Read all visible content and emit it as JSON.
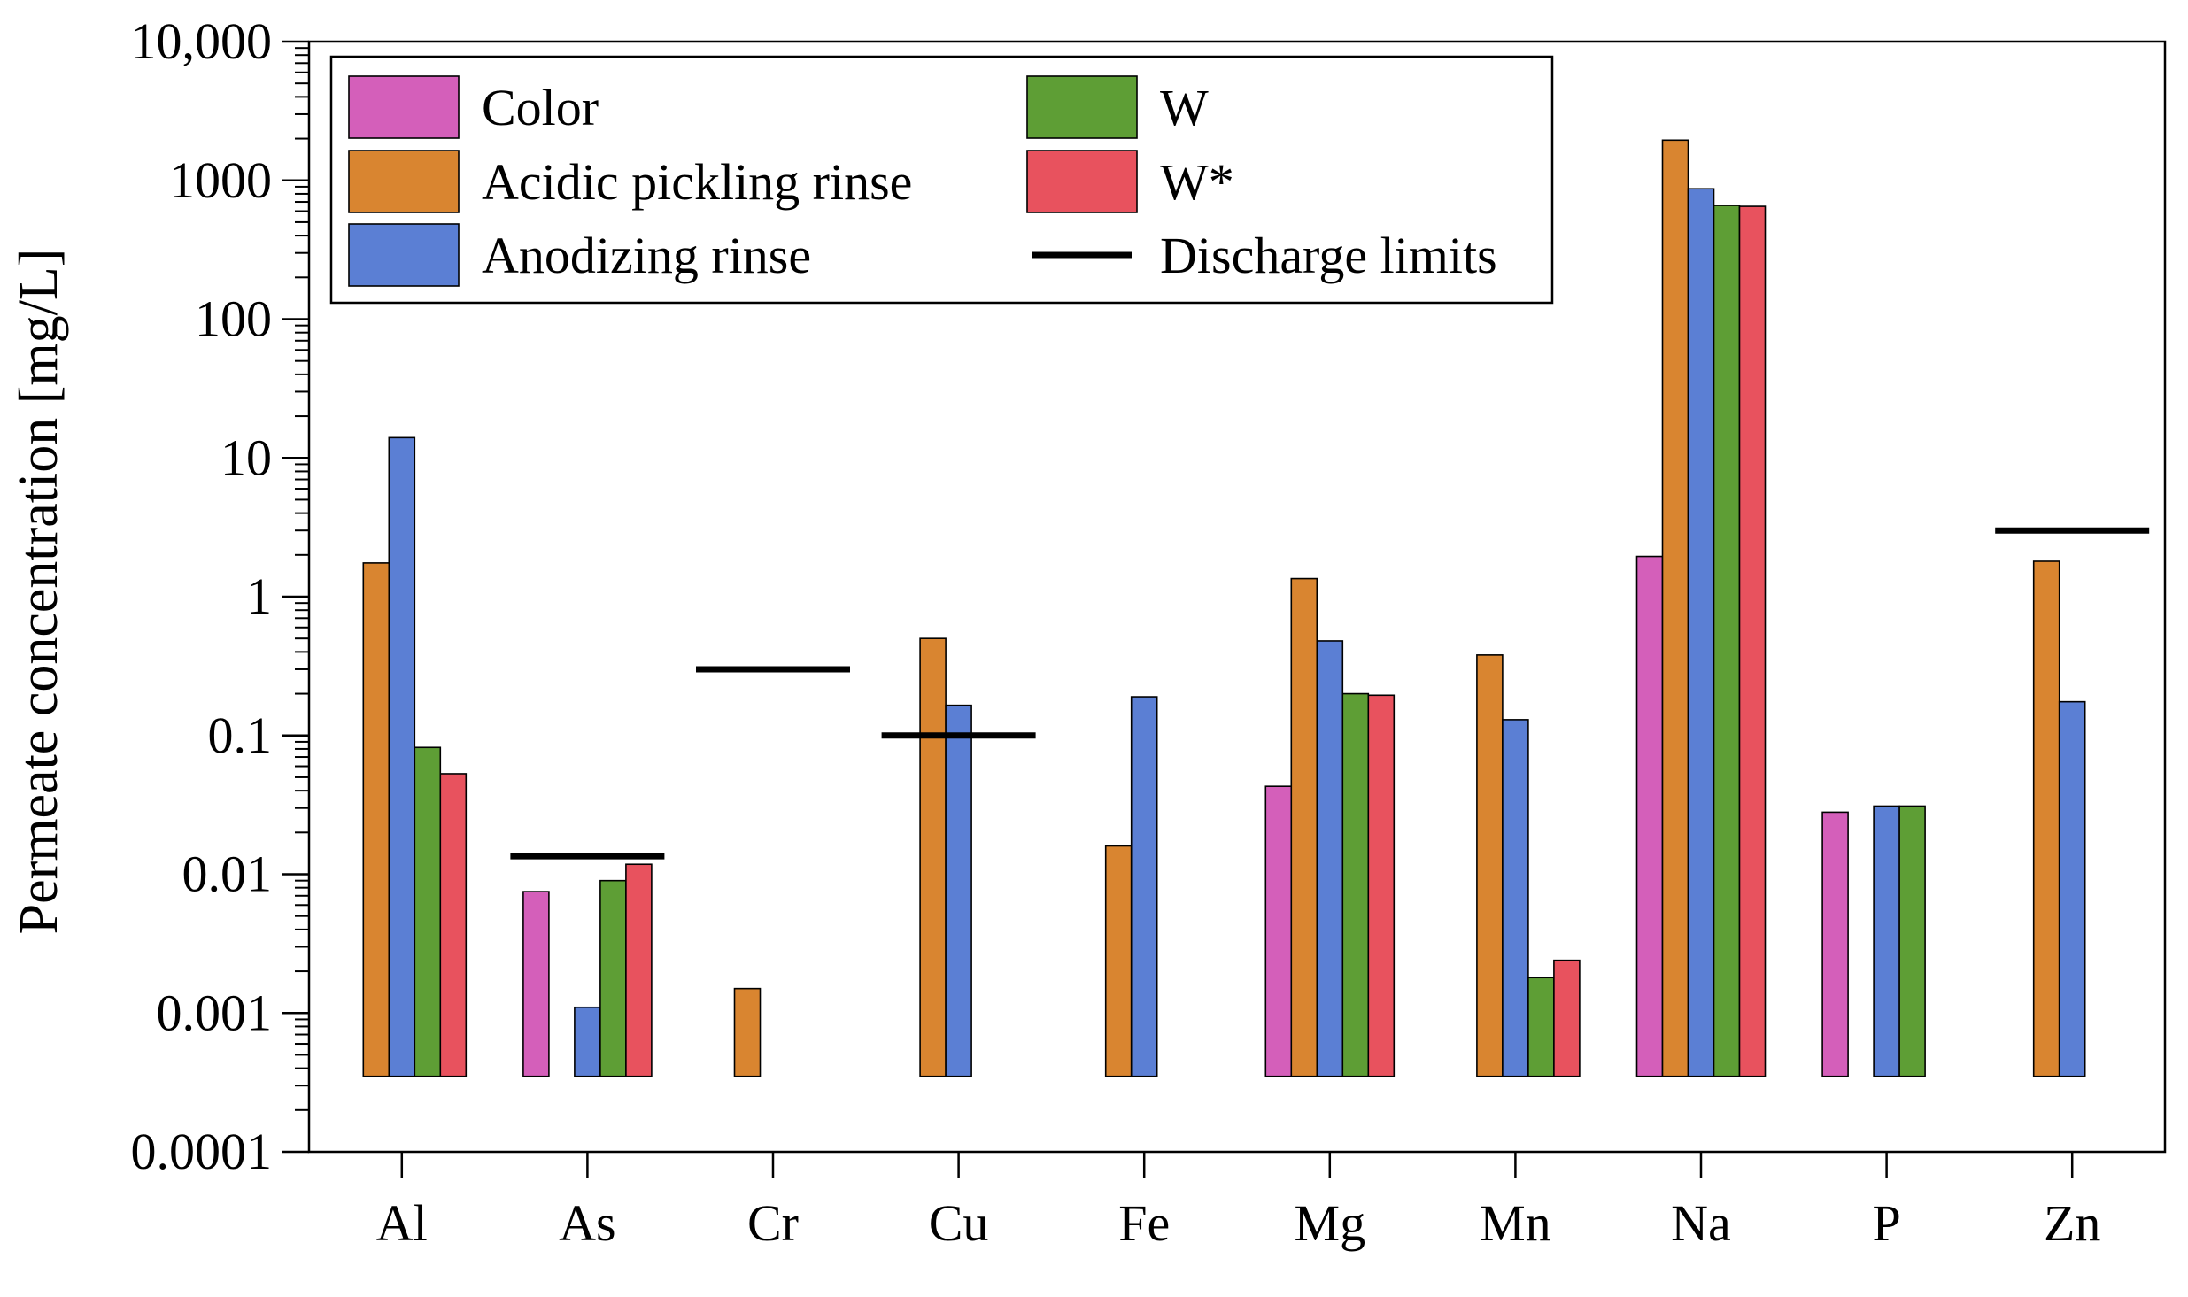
{
  "chart_data": {
    "type": "bar",
    "ylabel": "Permeate concentration [mg/L]",
    "xlabel": "",
    "yscale": "log",
    "ylim": [
      0.0001,
      10000
    ],
    "yticks": [
      {
        "value": 0.0001,
        "label": "0.0001"
      },
      {
        "value": 0.001,
        "label": "0.001"
      },
      {
        "value": 0.01,
        "label": "0.01"
      },
      {
        "value": 0.1,
        "label": "0.1"
      },
      {
        "value": 1,
        "label": "1"
      },
      {
        "value": 10,
        "label": "10"
      },
      {
        "value": 100,
        "label": "100"
      },
      {
        "value": 1000,
        "label": "1000"
      },
      {
        "value": 10000,
        "label": "10,000"
      }
    ],
    "bar_base": 0.00035,
    "categories": [
      "Al",
      "As",
      "Cr",
      "Cu",
      "Fe",
      "Mg",
      "Mn",
      "Na",
      "P",
      "Zn"
    ],
    "series": [
      {
        "name": "Color",
        "color": "#d45fba",
        "values": [
          null,
          0.0075,
          null,
          null,
          null,
          0.043,
          null,
          1.95,
          0.028,
          null
        ]
      },
      {
        "name": "Acidic pickling rinse",
        "color": "#d98530",
        "values": [
          1.75,
          null,
          0.0015,
          0.5,
          0.016,
          1.35,
          0.38,
          1950,
          null,
          1.8
        ]
      },
      {
        "name": "Anodizing rinse",
        "color": "#5b7fd4",
        "values": [
          14,
          0.0011,
          null,
          0.165,
          0.19,
          0.48,
          0.13,
          870,
          0.031,
          0.175
        ]
      },
      {
        "name": "W",
        "color": "#5e9e35",
        "values": [
          0.082,
          0.009,
          null,
          null,
          null,
          0.2,
          0.0018,
          660,
          0.031,
          null
        ]
      },
      {
        "name": "W*",
        "color": "#e8525e",
        "values": [
          0.053,
          0.0118,
          null,
          null,
          null,
          0.195,
          0.0024,
          650,
          null,
          null
        ]
      }
    ],
    "discharge_limits": {
      "name": "Discharge limits",
      "color": "#000000",
      "values": [
        null,
        0.0135,
        0.3,
        0.1,
        null,
        null,
        null,
        null,
        null,
        3
      ]
    },
    "legend": {
      "placement": "top-left",
      "columns": [
        [
          "Color",
          "Acidic pickling rinse",
          "Anodizing rinse"
        ],
        [
          "W",
          "W*",
          "Discharge limits"
        ]
      ]
    },
    "grid": false
  }
}
